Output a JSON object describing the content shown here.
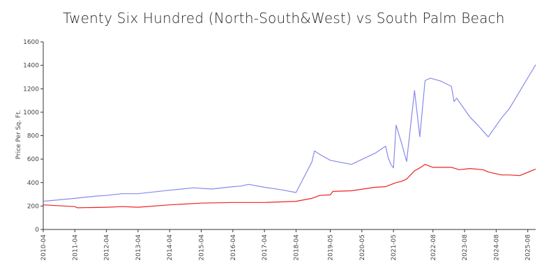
{
  "chart_data": {
    "type": "line",
    "title": "Twenty Six Hundred (North-South&West) vs South Palm Beach",
    "ylabel": "Price Per Sq. Ft.",
    "xlabel": "",
    "ylim": [
      0,
      1600
    ],
    "yticks": [
      0,
      200,
      400,
      600,
      800,
      1000,
      1200,
      1400,
      1600
    ],
    "xlim": [
      "2010-04",
      "2025-11"
    ],
    "xticks": [
      "2010-04",
      "2011-04",
      "2012-04",
      "2013-04",
      "2014-04",
      "2015-04",
      "2016-04",
      "2017-04",
      "2018-04",
      "2019-05",
      "2020-05",
      "2021-05",
      "2022-08",
      "2023-08",
      "2024-08",
      "2025-08"
    ],
    "grid": false,
    "legend": "none",
    "series": [
      {
        "color": "#8888ee",
        "points": [
          [
            "2010-04",
            240
          ],
          [
            "2011-04",
            265
          ],
          [
            "2011-12",
            285
          ],
          [
            "2012-04",
            290
          ],
          [
            "2012-10",
            305
          ],
          [
            "2013-04",
            305
          ],
          [
            "2014-04",
            335
          ],
          [
            "2015-01",
            355
          ],
          [
            "2015-08",
            345
          ],
          [
            "2016-04",
            365
          ],
          [
            "2016-07",
            370
          ],
          [
            "2016-10",
            385
          ],
          [
            "2017-04",
            360
          ],
          [
            "2017-10",
            340
          ],
          [
            "2018-04",
            315
          ],
          [
            "2018-10",
            575
          ],
          [
            "2018-11",
            670
          ],
          [
            "2019-01",
            640
          ],
          [
            "2019-05",
            590
          ],
          [
            "2020-01",
            555
          ],
          [
            "2020-10",
            650
          ],
          [
            "2021-02",
            710
          ],
          [
            "2021-03",
            610
          ],
          [
            "2021-04",
            555
          ],
          [
            "2021-05",
            525
          ],
          [
            "2021-06",
            890
          ],
          [
            "2021-08",
            740
          ],
          [
            "2021-10",
            580
          ],
          [
            "2022-01",
            1185
          ],
          [
            "2022-03",
            790
          ],
          [
            "2022-05",
            1270
          ],
          [
            "2022-07",
            1290
          ],
          [
            "2022-11",
            1265
          ],
          [
            "2023-03",
            1220
          ],
          [
            "2023-04",
            1090
          ],
          [
            "2023-05",
            1120
          ],
          [
            "2023-10",
            960
          ],
          [
            "2024-01",
            890
          ],
          [
            "2024-05",
            790
          ],
          [
            "2024-10",
            950
          ],
          [
            "2025-01",
            1030
          ],
          [
            "2025-11",
            1405
          ]
        ]
      },
      {
        "color": "#ee2222",
        "points": [
          [
            "2010-04",
            210
          ],
          [
            "2011-04",
            195
          ],
          [
            "2011-05",
            185
          ],
          [
            "2012-04",
            190
          ],
          [
            "2012-10",
            195
          ],
          [
            "2013-04",
            190
          ],
          [
            "2014-04",
            210
          ],
          [
            "2015-04",
            225
          ],
          [
            "2016-04",
            230
          ],
          [
            "2017-04",
            230
          ],
          [
            "2018-04",
            240
          ],
          [
            "2018-10",
            265
          ],
          [
            "2019-01",
            290
          ],
          [
            "2019-05",
            295
          ],
          [
            "2019-06",
            325
          ],
          [
            "2020-01",
            330
          ],
          [
            "2020-10",
            360
          ],
          [
            "2021-02",
            365
          ],
          [
            "2021-06",
            400
          ],
          [
            "2021-08",
            410
          ],
          [
            "2021-10",
            430
          ],
          [
            "2022-01",
            500
          ],
          [
            "2022-03",
            525
          ],
          [
            "2022-05",
            555
          ],
          [
            "2022-08",
            530
          ],
          [
            "2023-03",
            530
          ],
          [
            "2023-06",
            510
          ],
          [
            "2023-10",
            520
          ],
          [
            "2024-03",
            510
          ],
          [
            "2024-05",
            490
          ],
          [
            "2024-10",
            465
          ],
          [
            "2025-01",
            465
          ],
          [
            "2025-05",
            460
          ],
          [
            "2025-11",
            515
          ]
        ]
      }
    ]
  }
}
